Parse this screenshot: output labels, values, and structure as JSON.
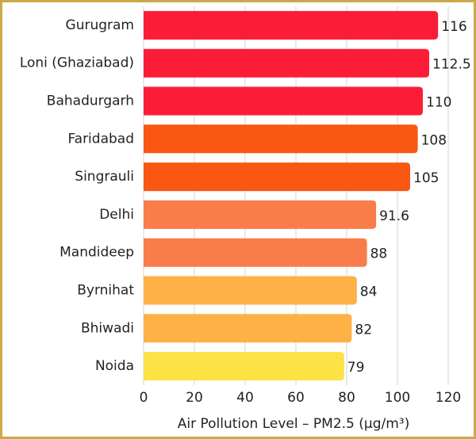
{
  "chart_data": {
    "type": "barh",
    "categories": [
      "Gurugram",
      "Loni (Ghaziabad)",
      "Bahadurgarh",
      "Faridabad",
      "Singrauli",
      "Delhi",
      "Mandideep",
      "Byrnihat",
      "Bhiwadi",
      "Noida"
    ],
    "values": [
      116,
      112.5,
      110,
      108,
      105,
      91.6,
      88,
      84,
      82,
      79
    ],
    "colors": [
      "#fb1d37",
      "#fb1d37",
      "#fb1d37",
      "#fa5712",
      "#fa5712",
      "#f97d4b",
      "#f97d4b",
      "#fdb147",
      "#fdb147",
      "#fde246"
    ],
    "xlabel": "Air Pollution Level – PM2.5 (µg/m³)",
    "xlim": [
      0,
      125
    ],
    "xticks": [
      0,
      20,
      40,
      60,
      80,
      100,
      120
    ],
    "grid": true
  }
}
